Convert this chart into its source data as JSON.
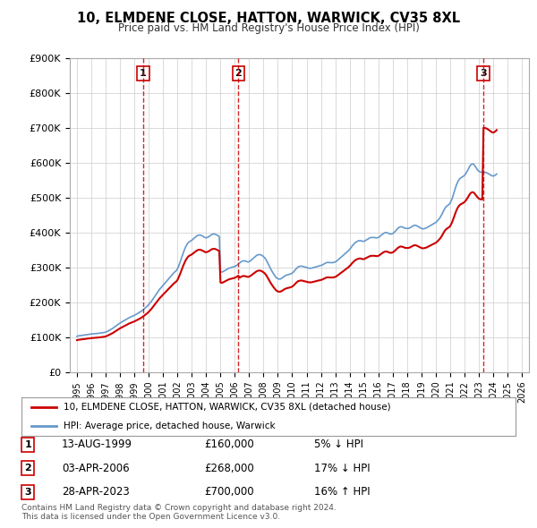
{
  "title": "10, ELMDENE CLOSE, HATTON, WARWICK, CV35 8XL",
  "subtitle": "Price paid vs. HM Land Registry's House Price Index (HPI)",
  "hpi_color": "#6699cc",
  "price_color": "#cc0000",
  "marker_line_color": "#cc0000",
  "background_color": "#ffffff",
  "grid_color": "#cccccc",
  "ylim": [
    0,
    900000
  ],
  "yticks": [
    0,
    100000,
    200000,
    300000,
    400000,
    500000,
    600000,
    700000,
    800000,
    900000
  ],
  "ytick_labels": [
    "£0",
    "£100K",
    "£200K",
    "£300K",
    "£400K",
    "£500K",
    "£600K",
    "£700K",
    "£800K",
    "£900K"
  ],
  "xlim_start": 1994.5,
  "xlim_end": 2026.5,
  "purchases": [
    {
      "year": 1999.617,
      "price": 160000,
      "label": "1"
    },
    {
      "year": 2006.253,
      "price": 268000,
      "label": "2"
    },
    {
      "year": 2023.322,
      "price": 700000,
      "label": "3"
    }
  ],
  "table_rows": [
    {
      "num": "1",
      "date": "13-AUG-1999",
      "price": "£160,000",
      "hpi": "5% ↓ HPI"
    },
    {
      "num": "2",
      "date": "03-APR-2006",
      "price": "£268,000",
      "hpi": "17% ↓ HPI"
    },
    {
      "num": "3",
      "date": "28-APR-2023",
      "price": "£700,000",
      "hpi": "16% ↑ HPI"
    }
  ],
  "legend_entries": [
    "10, ELMDENE CLOSE, HATTON, WARWICK, CV35 8XL (detached house)",
    "HPI: Average price, detached house, Warwick"
  ],
  "footer": "Contains HM Land Registry data © Crown copyright and database right 2024.\nThis data is licensed under the Open Government Licence v3.0."
}
